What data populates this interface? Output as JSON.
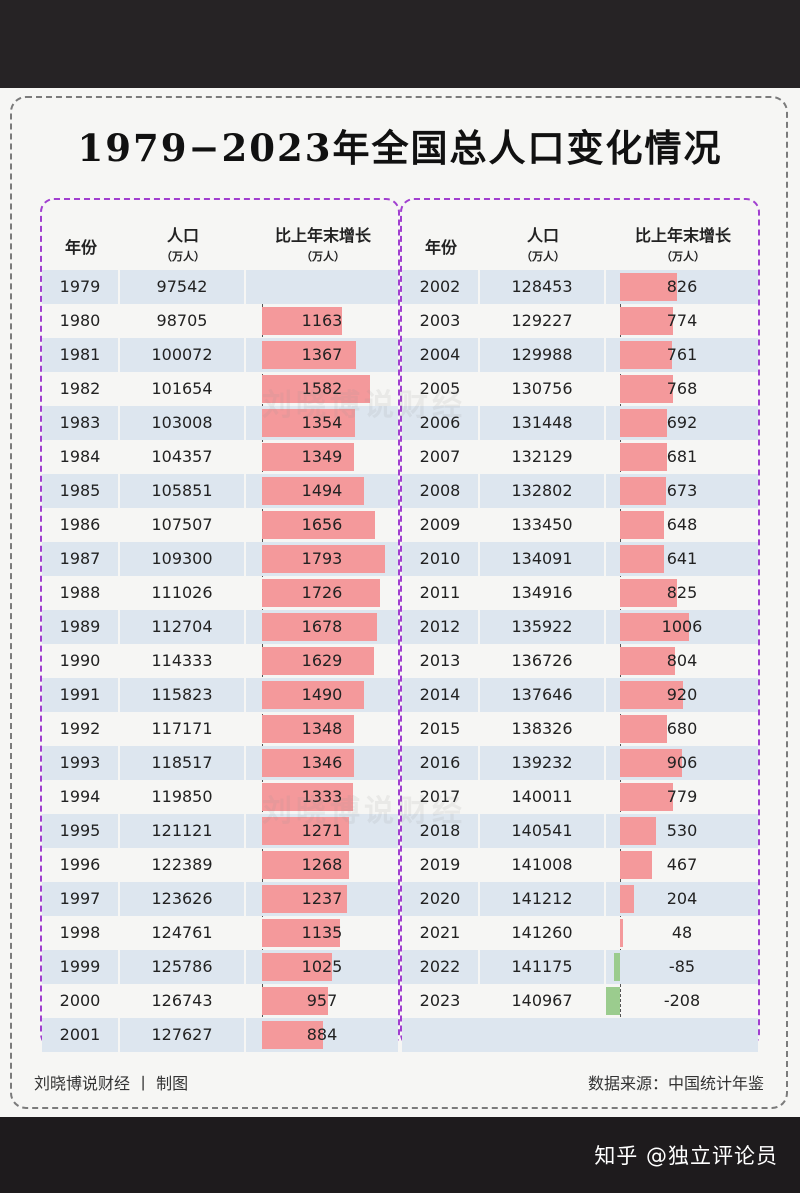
{
  "credit": "知乎 @独立评论员",
  "footer": {
    "left": "刘晓博说财经 丨 制图",
    "right": "数据来源：中国统计年鉴"
  },
  "watermark": "刘晓博说财经",
  "headers": {
    "year": "年份",
    "pop": "人口",
    "pop_unit": "（万人）",
    "growth": "比上年末增长",
    "growth_unit": "（万人）"
  },
  "colors": {
    "positive_bar": "#f4999b",
    "negative_bar": "#9bcc8e",
    "row_shade": "#dde6ef",
    "panel_border": "#a13fd0"
  },
  "chart_data": {
    "type": "bar",
    "title": "1979−2023年全国总人口变化情况",
    "columns": [
      "年份",
      "人口（万人）",
      "比上年末增长（万人）"
    ],
    "rows": [
      {
        "year": "1979",
        "population": "97542",
        "growth": null
      },
      {
        "year": "1980",
        "population": "98705",
        "growth": 1163
      },
      {
        "year": "1981",
        "population": "100072",
        "growth": 1367
      },
      {
        "year": "1982",
        "population": "101654",
        "growth": 1582
      },
      {
        "year": "1983",
        "population": "103008",
        "growth": 1354
      },
      {
        "year": "1984",
        "population": "104357",
        "growth": 1349
      },
      {
        "year": "1985",
        "population": "105851",
        "growth": 1494
      },
      {
        "year": "1986",
        "population": "107507",
        "growth": 1656
      },
      {
        "year": "1987",
        "population": "109300",
        "growth": 1793
      },
      {
        "year": "1988",
        "population": "111026",
        "growth": 1726
      },
      {
        "year": "1989",
        "population": "112704",
        "growth": 1678
      },
      {
        "year": "1990",
        "population": "114333",
        "growth": 1629
      },
      {
        "year": "1991",
        "population": "115823",
        "growth": 1490
      },
      {
        "year": "1992",
        "population": "117171",
        "growth": 1348
      },
      {
        "year": "1993",
        "population": "118517",
        "growth": 1346
      },
      {
        "year": "1994",
        "population": "119850",
        "growth": 1333
      },
      {
        "year": "1995",
        "population": "121121",
        "growth": 1271
      },
      {
        "year": "1996",
        "population": "122389",
        "growth": 1268
      },
      {
        "year": "1997",
        "population": "123626",
        "growth": 1237
      },
      {
        "year": "1998",
        "population": "124761",
        "growth": 1135
      },
      {
        "year": "1999",
        "population": "125786",
        "growth": 1025
      },
      {
        "year": "2000",
        "population": "126743",
        "growth": 957
      },
      {
        "year": "2001",
        "population": "127627",
        "growth": 884
      },
      {
        "year": "2002",
        "population": "128453",
        "growth": 826
      },
      {
        "year": "2003",
        "population": "129227",
        "growth": 774
      },
      {
        "year": "2004",
        "population": "129988",
        "growth": 761
      },
      {
        "year": "2005",
        "population": "130756",
        "growth": 768
      },
      {
        "year": "2006",
        "population": "131448",
        "growth": 692
      },
      {
        "year": "2007",
        "population": "132129",
        "growth": 681
      },
      {
        "year": "2008",
        "population": "132802",
        "growth": 673
      },
      {
        "year": "2009",
        "population": "133450",
        "growth": 648
      },
      {
        "year": "2010",
        "population": "134091",
        "growth": 641
      },
      {
        "year": "2011",
        "population": "134916",
        "growth": 825
      },
      {
        "year": "2012",
        "population": "135922",
        "growth": 1006
      },
      {
        "year": "2013",
        "population": "136726",
        "growth": 804
      },
      {
        "year": "2014",
        "population": "137646",
        "growth": 920
      },
      {
        "year": "2015",
        "population": "138326",
        "growth": 680
      },
      {
        "year": "2016",
        "population": "139232",
        "growth": 906
      },
      {
        "year": "2017",
        "population": "140011",
        "growth": 779
      },
      {
        "year": "2018",
        "population": "140541",
        "growth": 530
      },
      {
        "year": "2019",
        "population": "141008",
        "growth": 467
      },
      {
        "year": "2020",
        "population": "141212",
        "growth": 204
      },
      {
        "year": "2021",
        "population": "141260",
        "growth": 48
      },
      {
        "year": "2022",
        "population": "141175",
        "growth": -85
      },
      {
        "year": "2023",
        "population": "140967",
        "growth": -208
      }
    ]
  }
}
